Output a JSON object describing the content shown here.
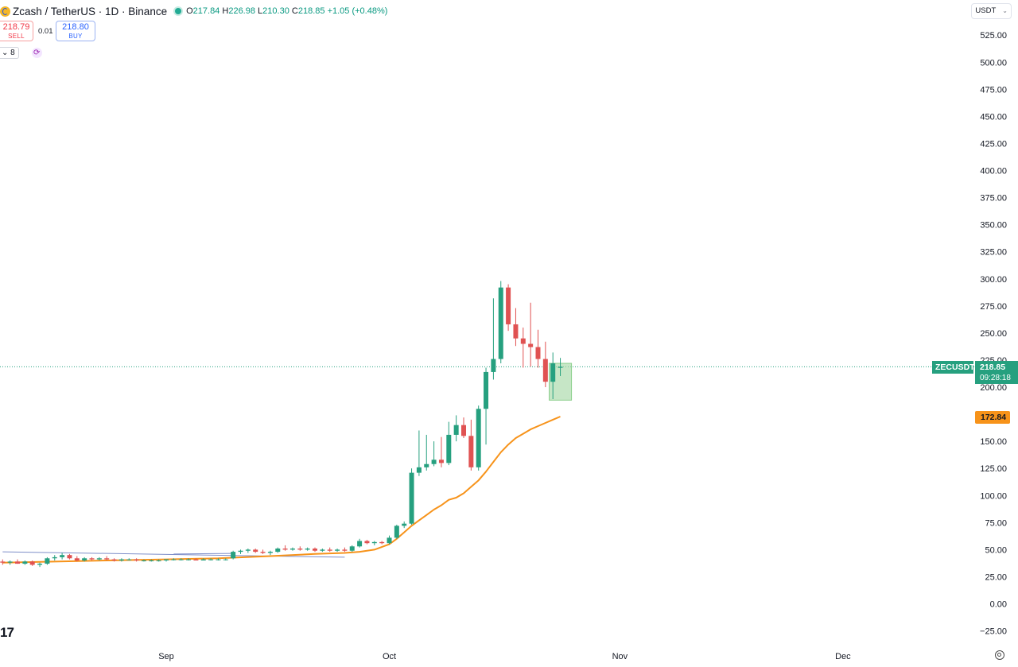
{
  "header": {
    "title": "Zcash / TetherUS · 1D · Binance",
    "ohlc": {
      "open_label": "O",
      "open": "217.84",
      "high_label": "H",
      "high": "226.98",
      "low_label": "L",
      "low": "210.30",
      "close_label": "C",
      "close": "218.85",
      "change": "+1.05 (+0.48%)"
    }
  },
  "trade": {
    "sell_price": "218.79",
    "sell_label": "SELL",
    "spread": "0.01",
    "buy_price": "218.80",
    "buy_label": "BUY"
  },
  "indicators": {
    "collapse_count": "8"
  },
  "currency_selector": "USDT",
  "watermark": "17",
  "price_tags": {
    "symbol": "ZECUSDT",
    "price": "218.85",
    "countdown": "09:28:18",
    "ema_value": "172.84"
  },
  "colors": {
    "up": "#26a07f",
    "down": "#e05252",
    "ema": "#f7931a",
    "trend": "#7e8ec8",
    "box": "#a8d8a8"
  },
  "chart_data": {
    "type": "candlestick",
    "symbol": "ZECUSDT",
    "timeframe": "1D",
    "y_ticks": [
      "525.00",
      "500.00",
      "475.00",
      "450.00",
      "425.00",
      "400.00",
      "375.00",
      "350.00",
      "325.00",
      "300.00",
      "275.00",
      "250.00",
      "225.00",
      "200.00",
      "175.00",
      "150.00",
      "125.00",
      "100.00",
      "75.00",
      "50.00",
      "25.00",
      "0.00",
      "−25.00"
    ],
    "y_tick_values": [
      525,
      500,
      475,
      450,
      425,
      400,
      375,
      350,
      325,
      300,
      275,
      250,
      225,
      200,
      175,
      150,
      125,
      100,
      75,
      50,
      25,
      0,
      -25
    ],
    "x_labels": [
      {
        "label": "Sep",
        "day": 0
      },
      {
        "label": "Oct",
        "day": 30
      },
      {
        "label": "Nov",
        "day": 61
      },
      {
        "label": "Dec",
        "day": 91
      }
    ],
    "last_price": 218.85,
    "ema_last": 172.84,
    "candles": [
      {
        "day": -22,
        "o": 39,
        "h": 41,
        "l": 36,
        "c": 38
      },
      {
        "day": -21,
        "o": 38,
        "h": 40,
        "l": 36,
        "c": 39
      },
      {
        "day": -20,
        "o": 39,
        "h": 41,
        "l": 37,
        "c": 37
      },
      {
        "day": -19,
        "o": 37,
        "h": 40,
        "l": 36,
        "c": 39
      },
      {
        "day": -18,
        "o": 39,
        "h": 40,
        "l": 35,
        "c": 36
      },
      {
        "day": -17,
        "o": 36,
        "h": 38,
        "l": 34,
        "c": 37
      },
      {
        "day": -16,
        "o": 37,
        "h": 43,
        "l": 36,
        "c": 42
      },
      {
        "day": -15,
        "o": 42,
        "h": 45,
        "l": 40,
        "c": 43
      },
      {
        "day": -14,
        "o": 43,
        "h": 47,
        "l": 41,
        "c": 45
      },
      {
        "day": -13,
        "o": 45,
        "h": 46,
        "l": 41,
        "c": 42
      },
      {
        "day": -12,
        "o": 42,
        "h": 44,
        "l": 39,
        "c": 40
      },
      {
        "day": -11,
        "o": 40,
        "h": 43,
        "l": 39,
        "c": 42
      },
      {
        "day": -10,
        "o": 42,
        "h": 43,
        "l": 40,
        "c": 41
      },
      {
        "day": -9,
        "o": 41,
        "h": 43,
        "l": 40,
        "c": 42
      },
      {
        "day": -8,
        "o": 42,
        "h": 44,
        "l": 40,
        "c": 41
      },
      {
        "day": -7,
        "o": 41,
        "h": 42,
        "l": 39,
        "c": 40
      },
      {
        "day": -6,
        "o": 40,
        "h": 42,
        "l": 39,
        "c": 41
      },
      {
        "day": -5,
        "o": 41,
        "h": 42,
        "l": 40,
        "c": 41
      },
      {
        "day": -4,
        "o": 41,
        "h": 42,
        "l": 39,
        "c": 40
      },
      {
        "day": -3,
        "o": 40,
        "h": 41,
        "l": 39,
        "c": 40
      },
      {
        "day": -2,
        "o": 40,
        "h": 41,
        "l": 39,
        "c": 40
      },
      {
        "day": -1,
        "o": 40,
        "h": 41,
        "l": 39,
        "c": 40
      },
      {
        "day": 0,
        "o": 40,
        "h": 41,
        "l": 39,
        "c": 41
      },
      {
        "day": 1,
        "o": 41,
        "h": 42,
        "l": 40,
        "c": 41
      },
      {
        "day": 2,
        "o": 41,
        "h": 42,
        "l": 40,
        "c": 41
      },
      {
        "day": 3,
        "o": 41,
        "h": 42,
        "l": 40,
        "c": 41
      },
      {
        "day": 4,
        "o": 41,
        "h": 42,
        "l": 40,
        "c": 40
      },
      {
        "day": 5,
        "o": 40,
        "h": 42,
        "l": 40,
        "c": 41
      },
      {
        "day": 6,
        "o": 41,
        "h": 42,
        "l": 40,
        "c": 41
      },
      {
        "day": 7,
        "o": 41,
        "h": 42,
        "l": 40,
        "c": 41
      },
      {
        "day": 8,
        "o": 41,
        "h": 42,
        "l": 40,
        "c": 41
      },
      {
        "day": 9,
        "o": 42,
        "h": 49,
        "l": 41,
        "c": 48
      },
      {
        "day": 10,
        "o": 48,
        "h": 50,
        "l": 46,
        "c": 49
      },
      {
        "day": 11,
        "o": 49,
        "h": 51,
        "l": 47,
        "c": 50
      },
      {
        "day": 12,
        "o": 50,
        "h": 51,
        "l": 47,
        "c": 48
      },
      {
        "day": 13,
        "o": 48,
        "h": 50,
        "l": 46,
        "c": 47
      },
      {
        "day": 14,
        "o": 47,
        "h": 49,
        "l": 45,
        "c": 48
      },
      {
        "day": 15,
        "o": 48,
        "h": 52,
        "l": 47,
        "c": 51
      },
      {
        "day": 16,
        "o": 51,
        "h": 54,
        "l": 49,
        "c": 50
      },
      {
        "day": 17,
        "o": 50,
        "h": 52,
        "l": 49,
        "c": 51
      },
      {
        "day": 18,
        "o": 51,
        "h": 53,
        "l": 49,
        "c": 50
      },
      {
        "day": 19,
        "o": 50,
        "h": 52,
        "l": 49,
        "c": 51
      },
      {
        "day": 20,
        "o": 51,
        "h": 52,
        "l": 48,
        "c": 49
      },
      {
        "day": 21,
        "o": 49,
        "h": 51,
        "l": 48,
        "c": 50
      },
      {
        "day": 22,
        "o": 50,
        "h": 52,
        "l": 48,
        "c": 49
      },
      {
        "day": 23,
        "o": 49,
        "h": 51,
        "l": 48,
        "c": 50
      },
      {
        "day": 24,
        "o": 50,
        "h": 52,
        "l": 48,
        "c": 49
      },
      {
        "day": 25,
        "o": 49,
        "h": 54,
        "l": 48,
        "c": 53
      },
      {
        "day": 26,
        "o": 53,
        "h": 60,
        "l": 52,
        "c": 58
      },
      {
        "day": 27,
        "o": 58,
        "h": 59,
        "l": 55,
        "c": 56
      },
      {
        "day": 28,
        "o": 56,
        "h": 58,
        "l": 54,
        "c": 57
      },
      {
        "day": 29,
        "o": 57,
        "h": 58,
        "l": 55,
        "c": 56
      },
      {
        "day": 30,
        "o": 56,
        "h": 63,
        "l": 55,
        "c": 61
      },
      {
        "day": 31,
        "o": 61,
        "h": 73,
        "l": 60,
        "c": 72
      },
      {
        "day": 32,
        "o": 72,
        "h": 76,
        "l": 70,
        "c": 74
      },
      {
        "day": 33,
        "o": 74,
        "h": 125,
        "l": 73,
        "c": 121
      },
      {
        "day": 34,
        "o": 121,
        "h": 160,
        "l": 118,
        "c": 126
      },
      {
        "day": 35,
        "o": 126,
        "h": 156,
        "l": 123,
        "c": 129
      },
      {
        "day": 36,
        "o": 129,
        "h": 150,
        "l": 127,
        "c": 133
      },
      {
        "day": 37,
        "o": 133,
        "h": 154,
        "l": 126,
        "c": 130
      },
      {
        "day": 38,
        "o": 130,
        "h": 168,
        "l": 128,
        "c": 156
      },
      {
        "day": 39,
        "o": 156,
        "h": 174,
        "l": 150,
        "c": 165
      },
      {
        "day": 40,
        "o": 165,
        "h": 172,
        "l": 153,
        "c": 155
      },
      {
        "day": 41,
        "o": 155,
        "h": 170,
        "l": 123,
        "c": 126
      },
      {
        "day": 42,
        "o": 126,
        "h": 183,
        "l": 123,
        "c": 180
      },
      {
        "day": 43,
        "o": 180,
        "h": 218,
        "l": 147,
        "c": 214
      },
      {
        "day": 44,
        "o": 214,
        "h": 282,
        "l": 207,
        "c": 226
      },
      {
        "day": 45,
        "o": 226,
        "h": 298,
        "l": 222,
        "c": 292
      },
      {
        "day": 46,
        "o": 292,
        "h": 295,
        "l": 252,
        "c": 258
      },
      {
        "day": 47,
        "o": 258,
        "h": 273,
        "l": 238,
        "c": 245
      },
      {
        "day": 48,
        "o": 245,
        "h": 255,
        "l": 218,
        "c": 240
      },
      {
        "day": 49,
        "o": 240,
        "h": 278,
        "l": 219,
        "c": 237
      },
      {
        "day": 50,
        "o": 237,
        "h": 253,
        "l": 218,
        "c": 226
      },
      {
        "day": 51,
        "o": 226,
        "h": 242,
        "l": 200,
        "c": 205
      },
      {
        "day": 52,
        "o": 205,
        "h": 232,
        "l": 189,
        "c": 222
      },
      {
        "day": 53,
        "o": 217.84,
        "h": 226.98,
        "l": 210.3,
        "c": 218.85
      }
    ],
    "ema": [
      [
        -22,
        38
      ],
      [
        -15,
        39
      ],
      [
        -8,
        40
      ],
      [
        0,
        41
      ],
      [
        7,
        42
      ],
      [
        14,
        44
      ],
      [
        20,
        46
      ],
      [
        24,
        47
      ],
      [
        26,
        48
      ],
      [
        28,
        50
      ],
      [
        30,
        55
      ],
      [
        31,
        60
      ],
      [
        32,
        66
      ],
      [
        33,
        72
      ],
      [
        34,
        77
      ],
      [
        35,
        82
      ],
      [
        36,
        87
      ],
      [
        37,
        91
      ],
      [
        38,
        96
      ],
      [
        39,
        98
      ],
      [
        40,
        102
      ],
      [
        41,
        108
      ],
      [
        42,
        114
      ],
      [
        43,
        122
      ],
      [
        44,
        131
      ],
      [
        45,
        140
      ],
      [
        46,
        147
      ],
      [
        47,
        153
      ],
      [
        48,
        157
      ],
      [
        49,
        161
      ],
      [
        50,
        164
      ],
      [
        51,
        167
      ],
      [
        52,
        170
      ],
      [
        53,
        172.84
      ]
    ],
    "trendline": {
      "start": [
        -22,
        48
      ],
      "end": [
        24,
        43
      ]
    },
    "trendline2": {
      "start": [
        1,
        46
      ],
      "end": [
        9,
        46.5
      ]
    },
    "highlight_box": {
      "day_start": 51.5,
      "day_end": 54.5,
      "price_top": 222,
      "price_bottom": 188
    }
  }
}
